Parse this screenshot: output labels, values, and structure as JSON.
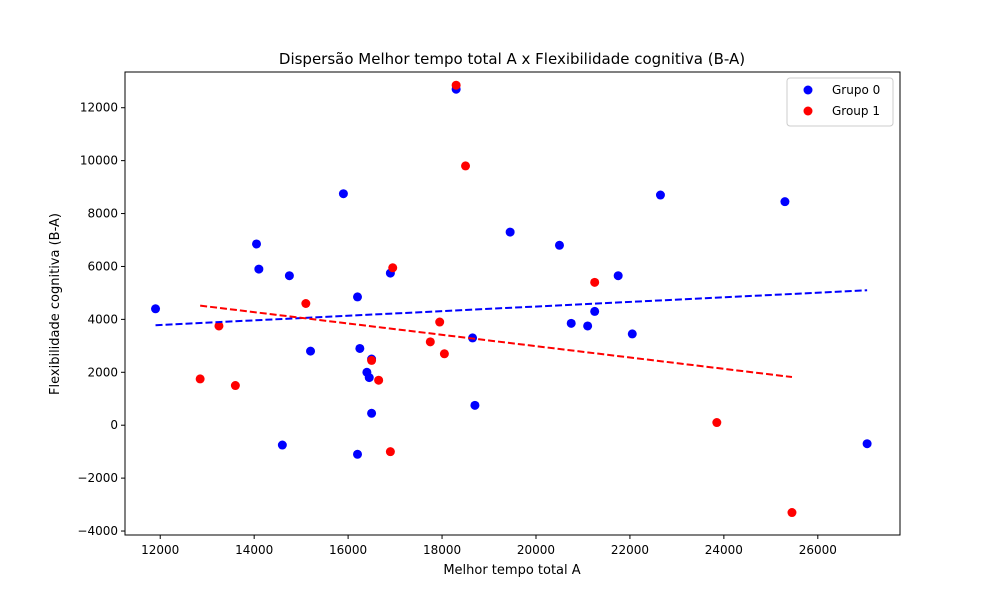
{
  "chart_data": {
    "type": "scatter",
    "title": "Dispersão Melhor tempo total A x Flexibilidade cognitiva (B-A)",
    "xlabel": "Melhor tempo total A",
    "ylabel": "Flexibilidade cognitiva (B-A)",
    "xlim": [
      11250,
      27750
    ],
    "ylim": [
      -4150,
      13350
    ],
    "xticks": [
      12000,
      14000,
      16000,
      18000,
      20000,
      22000,
      24000,
      26000
    ],
    "yticks": [
      -4000,
      -2000,
      0,
      2000,
      4000,
      6000,
      8000,
      10000,
      12000
    ],
    "grid": false,
    "legend_position": "top-right",
    "series": [
      {
        "name": "Grupo 0",
        "color": "#0000ff",
        "points": [
          [
            11900,
            4400
          ],
          [
            14050,
            6850
          ],
          [
            14100,
            5900
          ],
          [
            14600,
            -750
          ],
          [
            14750,
            5650
          ],
          [
            15200,
            2800
          ],
          [
            15900,
            8750
          ],
          [
            16200,
            4850
          ],
          [
            16200,
            -1100
          ],
          [
            16250,
            2900
          ],
          [
            16400,
            2000
          ],
          [
            16450,
            1800
          ],
          [
            16500,
            2500
          ],
          [
            16500,
            450
          ],
          [
            16900,
            5750
          ],
          [
            18300,
            12700
          ],
          [
            18650,
            3300
          ],
          [
            18700,
            750
          ],
          [
            19450,
            7300
          ],
          [
            20500,
            6800
          ],
          [
            20750,
            3850
          ],
          [
            21100,
            3750
          ],
          [
            21250,
            4300
          ],
          [
            21750,
            5650
          ],
          [
            22050,
            3450
          ],
          [
            22650,
            8700
          ],
          [
            25300,
            8450
          ],
          [
            27050,
            -700
          ]
        ],
        "trend": [
          [
            11900,
            3780
          ],
          [
            27050,
            5100
          ]
        ]
      },
      {
        "name": "Group 1",
        "color": "#ff0000",
        "points": [
          [
            12850,
            1750
          ],
          [
            13250,
            3750
          ],
          [
            13600,
            1500
          ],
          [
            15100,
            4600
          ],
          [
            16500,
            2450
          ],
          [
            16650,
            1700
          ],
          [
            16900,
            -1000
          ],
          [
            16950,
            5950
          ],
          [
            17750,
            3150
          ],
          [
            17950,
            3900
          ],
          [
            18050,
            2700
          ],
          [
            18300,
            12850
          ],
          [
            18500,
            9800
          ],
          [
            21250,
            5400
          ],
          [
            23850,
            100
          ],
          [
            25450,
            -3300
          ]
        ],
        "trend": [
          [
            12850,
            4520
          ],
          [
            25450,
            1820
          ]
        ]
      }
    ]
  }
}
